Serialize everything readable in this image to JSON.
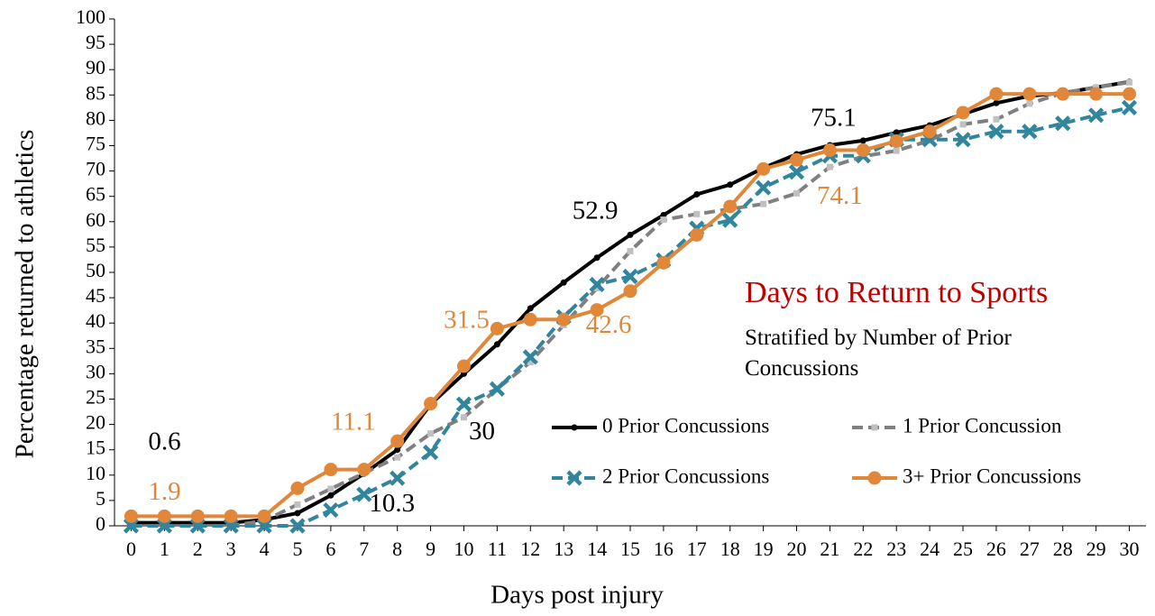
{
  "chart_data": {
    "type": "line",
    "title": "Days to Return to Sports",
    "subtitle": "Stratified by Number of Prior Concussions",
    "x_label": "Days post injury",
    "y_label": "Percentage returned to athletics",
    "x": [
      0,
      1,
      2,
      3,
      4,
      5,
      6,
      7,
      8,
      9,
      10,
      11,
      12,
      13,
      14,
      15,
      16,
      17,
      18,
      19,
      20,
      21,
      22,
      23,
      24,
      25,
      26,
      27,
      28,
      29,
      30
    ],
    "xlim": [
      -0.5,
      30.5
    ],
    "xticks": [
      0,
      1,
      2,
      3,
      4,
      5,
      6,
      7,
      8,
      9,
      10,
      11,
      12,
      13,
      14,
      15,
      16,
      17,
      18,
      19,
      20,
      21,
      22,
      23,
      24,
      25,
      26,
      27,
      28,
      29,
      30
    ],
    "ylim": [
      0,
      100
    ],
    "yticks": [
      0,
      5,
      10,
      15,
      20,
      25,
      30,
      35,
      40,
      45,
      50,
      55,
      60,
      65,
      70,
      75,
      80,
      85,
      90,
      95,
      100
    ],
    "series": [
      {
        "name": "0 Prior Concussions",
        "color": "#000000",
        "marker": "dot",
        "dash": false,
        "values": [
          0.6,
          0.6,
          0.6,
          0.6,
          1.2,
          2.5,
          6,
          10.3,
          15,
          24,
          30,
          35.8,
          42.9,
          48,
          52.9,
          57.4,
          61.3,
          65.4,
          67.3,
          70.6,
          73.3,
          75.1,
          76,
          77.6,
          79,
          81.2,
          83.4,
          84.8,
          85.4,
          86.5,
          87.6
        ],
        "value_labels": [
          "0.6",
          null,
          null,
          null,
          null,
          null,
          null,
          "10.3",
          null,
          null,
          "30",
          null,
          null,
          null,
          "52.9",
          null,
          null,
          null,
          null,
          null,
          null,
          "75.1",
          null,
          null,
          null,
          null,
          null,
          null,
          null,
          null,
          null
        ]
      },
      {
        "name": "1 Prior Concussion",
        "color": "#808080",
        "marker": "square",
        "dash": true,
        "values": [
          0,
          0,
          0,
          0,
          1,
          4.2,
          7.3,
          10.4,
          13.5,
          18.2,
          21.4,
          27,
          32.3,
          39.6,
          46.9,
          54.2,
          60.4,
          61.5,
          62.5,
          63.5,
          65.6,
          70.8,
          72.9,
          74,
          76,
          79.2,
          80.2,
          83.3,
          85.4,
          86.5,
          87.5
        ]
      },
      {
        "name": "2 Prior Concussions",
        "color": "#31859c",
        "marker": "x",
        "dash": true,
        "values": [
          0,
          0,
          0,
          0,
          0,
          0,
          3.1,
          6.2,
          9.4,
          14.5,
          24,
          27,
          33.3,
          41.2,
          47.6,
          49.2,
          52.4,
          58.7,
          60.3,
          66.7,
          69.8,
          73,
          73,
          76.2,
          76.2,
          76.2,
          77.8,
          77.8,
          79.4,
          81,
          82.5
        ]
      },
      {
        "name": "3+ Prior Concussions",
        "color": "#e0873a",
        "marker": "circle",
        "dash": false,
        "values": [
          1.9,
          1.9,
          1.9,
          1.9,
          1.9,
          7.4,
          11.1,
          11.1,
          16.7,
          24.1,
          31.5,
          38.9,
          40.7,
          40.7,
          42.6,
          46.3,
          51.9,
          57.4,
          63,
          70.4,
          72.2,
          74.1,
          74.1,
          75.9,
          77.8,
          81.5,
          85.2,
          85.2,
          85.2,
          85.2,
          85.2
        ],
        "value_labels": [
          "1.9",
          null,
          null,
          null,
          null,
          null,
          null,
          "11.1",
          null,
          null,
          "31.5",
          null,
          null,
          null,
          "42.6",
          null,
          null,
          null,
          null,
          null,
          null,
          "74.1",
          null,
          null,
          null,
          null,
          null,
          null,
          null,
          null,
          null
        ]
      }
    ]
  }
}
